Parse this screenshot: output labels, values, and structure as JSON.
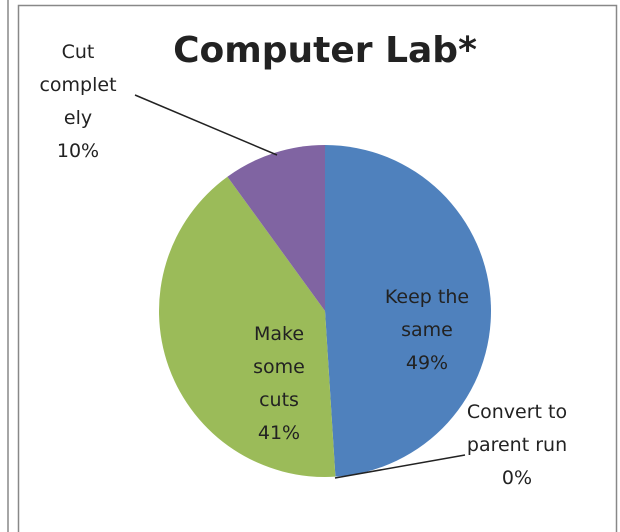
{
  "chart_data": {
    "type": "pie",
    "title": "Computer Lab*",
    "categories": [
      "Keep the same",
      "Convert to parent run",
      "Make some cuts",
      "Cut completely"
    ],
    "values": [
      49,
      0,
      41,
      10
    ],
    "value_labels": [
      "49%",
      "0%",
      "41%",
      "10%"
    ],
    "colors": [
      "#4f81bd",
      "#c0504d",
      "#9bbb59",
      "#8064a2"
    ]
  }
}
